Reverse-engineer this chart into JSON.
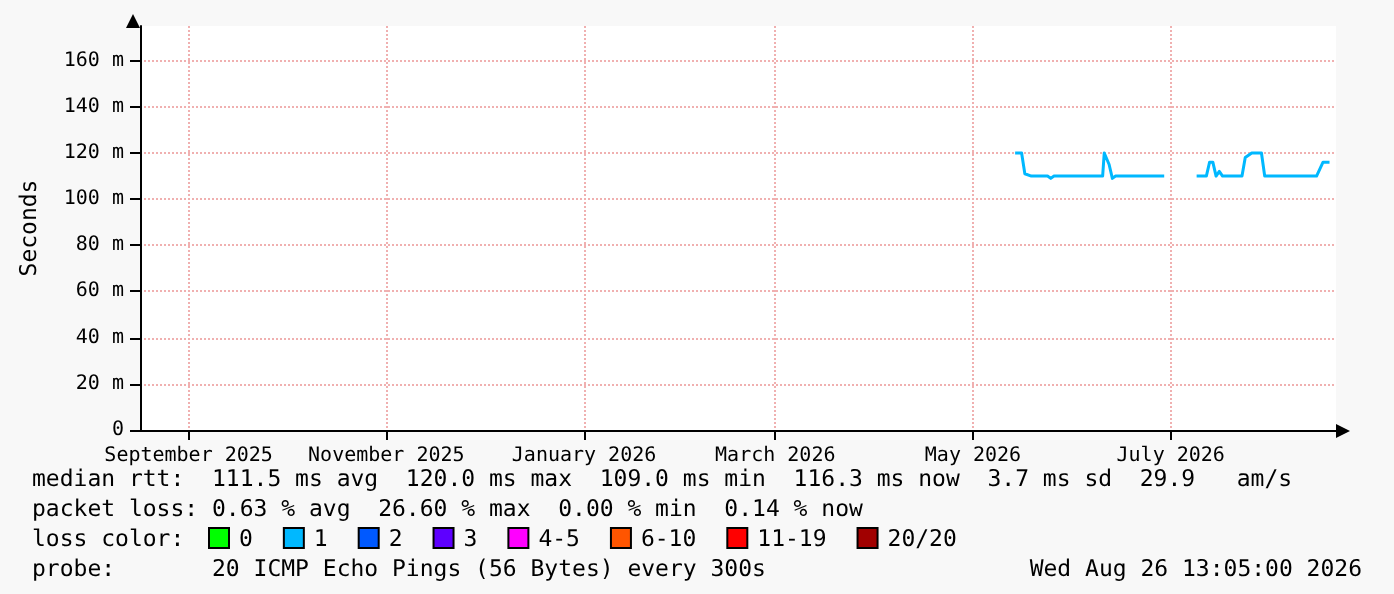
{
  "chart_data": {
    "type": "line",
    "ylabel": "Seconds",
    "legend_title": "loss color:",
    "legend": "bottom left",
    "grid": true,
    "x": [
      "2026-05-29",
      "2026-05-31",
      "2026-06-01",
      "2026-06-03",
      "2026-06-08",
      "2026-06-09",
      "2026-06-10",
      "2026-06-16",
      "2026-06-25T00:00",
      "2026-06-25T12:00",
      "2026-06-27",
      "2026-06-28",
      "2026-06-29",
      "2026-07-07",
      "2026-07-14",
      "2026-07-20",
      "2026-07-24",
      "2026-07-27",
      "2026-07-28",
      "2026-07-29",
      "2026-07-30",
      "2026-07-31",
      "2026-08-01",
      "2026-08-07",
      "2026-08-08",
      "2026-08-10",
      "2026-08-13",
      "2026-08-14",
      "2026-08-23",
      "2026-08-30",
      "2026-09-01",
      "2026-09-03"
    ],
    "series": [
      {
        "color": "#00b8ff",
        "values": [
          120,
          120,
          111,
          110,
          110,
          109,
          110,
          110,
          110,
          120,
          115,
          109,
          110,
          110,
          110,
          null,
          110,
          110,
          116,
          116,
          110,
          112,
          110,
          110,
          118,
          120,
          120,
          110,
          110,
          110,
          116,
          116
        ]
      },
      {
        "name": "0",
        "color": "#00ff00",
        "values": [
          null,
          null,
          null,
          null,
          null,
          null,
          null,
          null,
          null,
          null,
          null,
          null,
          null,
          null,
          null,
          null,
          null,
          null,
          null,
          null,
          null,
          null,
          null,
          null,
          null,
          null,
          null,
          null,
          null,
          null,
          null,
          null
        ]
      },
      {
        "name": "1",
        "color": "#00b8ff",
        "values": [
          null,
          null,
          null,
          null,
          null,
          null,
          null,
          null,
          null,
          null,
          null,
          null,
          null,
          null,
          null,
          null,
          null,
          null,
          null,
          null,
          null,
          null,
          null,
          null,
          null,
          null,
          null,
          null,
          null,
          null,
          null,
          null
        ]
      },
      {
        "name": "2",
        "color": "#0059ff",
        "values": [
          null,
          null,
          null,
          null,
          null,
          null,
          null,
          null,
          null,
          null,
          null,
          null,
          null,
          null,
          null,
          null,
          null,
          null,
          null,
          null,
          null,
          null,
          null,
          null,
          null,
          null,
          null,
          null,
          null,
          null,
          null,
          null
        ]
      },
      {
        "name": "3",
        "color": "#5e00ff",
        "values": [
          null,
          null,
          null,
          null,
          null,
          null,
          null,
          null,
          null,
          null,
          null,
          null,
          null,
          null,
          null,
          null,
          null,
          null,
          null,
          null,
          null,
          null,
          null,
          null,
          null,
          null,
          null,
          null,
          null,
          null,
          null,
          null
        ]
      },
      {
        "name": "4-5",
        "color": "#ff00ff",
        "values": [
          null,
          null,
          null,
          null,
          null,
          null,
          null,
          null,
          null,
          null,
          null,
          null,
          null,
          null,
          null,
          null,
          null,
          null,
          null,
          null,
          null,
          null,
          null,
          null,
          null,
          null,
          null,
          null,
          null,
          null,
          null,
          null
        ]
      },
      {
        "name": "6-10",
        "color": "#ff5500",
        "values": [
          null,
          null,
          null,
          null,
          null,
          null,
          null,
          null,
          null,
          null,
          null,
          null,
          null,
          null,
          null,
          null,
          null,
          null,
          null,
          null,
          null,
          null,
          null,
          null,
          null,
          null,
          null,
          null,
          null,
          null,
          null,
          null
        ]
      },
      {
        "name": "11-19",
        "color": "#ff0000",
        "values": [
          null,
          null,
          null,
          null,
          null,
          null,
          null,
          null,
          null,
          null,
          null,
          null,
          null,
          null,
          null,
          null,
          null,
          null,
          null,
          null,
          null,
          null,
          null,
          null,
          null,
          null,
          null,
          null,
          null,
          null,
          null,
          null
        ]
      },
      {
        "name": "20/20",
        "color": "#a10000",
        "values": [
          null,
          null,
          null,
          null,
          null,
          null,
          null,
          null,
          null,
          null,
          null,
          null,
          null,
          null,
          null,
          null,
          null,
          null,
          null,
          null,
          null,
          null,
          null,
          null,
          null,
          null,
          null,
          null,
          null,
          null,
          null,
          null
        ]
      }
    ],
    "xlim": [
      "2025-09-01",
      "2026-09-05"
    ],
    "xticks": [
      {
        "value": "2025-09-16",
        "label": "September 2025"
      },
      {
        "value": "2025-11-16",
        "label": "November 2025"
      },
      {
        "value": "2026-01-16",
        "label": "January 2026"
      },
      {
        "value": "2026-03-16",
        "label": "March 2026"
      },
      {
        "value": "2026-05-16",
        "label": "May 2026"
      },
      {
        "value": "2026-07-16",
        "label": "July 2026"
      }
    ],
    "ylim": [
      0,
      175
    ],
    "yticks": [
      0,
      {
        "value": 20,
        "label": "20 m"
      },
      {
        "value": 40,
        "label": "40 m"
      },
      {
        "value": 60,
        "label": "60 m"
      },
      {
        "value": 80,
        "label": "80 m"
      },
      {
        "value": 100,
        "label": "100 m"
      },
      {
        "value": 120,
        "label": "120 m"
      },
      {
        "value": 140,
        "label": "140 m"
      },
      {
        "value": 160,
        "label": "160 m"
      }
    ],
    "annotations": [
      "median rtt:  111.5 ms avg  120.0 ms max  109.0 ms min  116.3 ms now  3.7 ms sd  29.9   am/s",
      "packet loss: 0.63 % avg  26.60 % max  0.00 % min  0.14 % now",
      "probe:       20 ICMP Echo Pings (56 Bytes) every 300s",
      "Wed Aug 26 13:05:00 2026"
    ]
  }
}
